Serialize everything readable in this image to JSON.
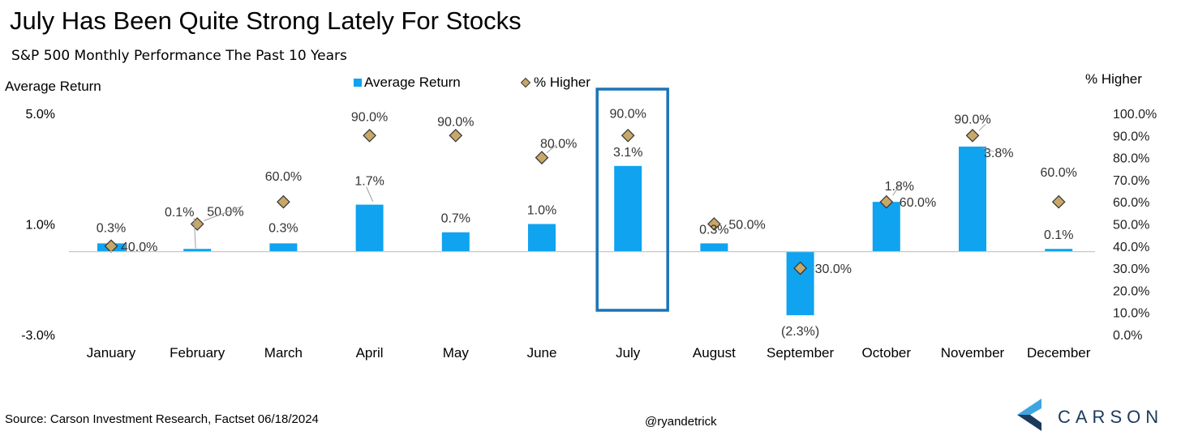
{
  "header": {
    "title": "July Has Been Quite Strong Lately For Stocks",
    "subtitle": "S&P 500 Monthly Performance The Past 10 Years"
  },
  "footer": {
    "source": "Source: Carson Investment Research, Factset 06/18/2024",
    "handle": "@ryandetrick",
    "logo_text": "CARSON"
  },
  "colors": {
    "bar": "#0fa3f0",
    "marker": "#c8a868",
    "marker_border": "#333333",
    "highlight_box": "#1a74b8",
    "axis_line": "#c8c8c8",
    "logo_dark": "#1b3a5c",
    "logo_light": "#3fa5e0"
  },
  "chart_data": {
    "type": "bar",
    "categories": [
      "January",
      "February",
      "March",
      "April",
      "May",
      "June",
      "July",
      "August",
      "September",
      "October",
      "November",
      "December"
    ],
    "series": [
      {
        "name": "Average Return",
        "type": "bar",
        "axis": "left",
        "values": [
          0.3,
          0.1,
          0.3,
          1.7,
          0.7,
          1.0,
          3.1,
          0.3,
          -2.3,
          1.8,
          3.8,
          0.1
        ],
        "labels": [
          "0.3%",
          "0.1%",
          "0.3%",
          "1.7%",
          "0.7%",
          "1.0%",
          "3.1%",
          "0.3%",
          "(2.3%)",
          "1.8%",
          "3.8%",
          "0.1%"
        ]
      },
      {
        "name": "% Higher",
        "type": "scatter",
        "marker": "diamond",
        "axis": "right",
        "values": [
          40,
          50,
          60,
          90,
          90,
          80,
          90,
          50,
          30,
          60,
          90,
          60
        ],
        "labels": [
          "40.0%",
          "50.0%",
          "60.0%",
          "90.0%",
          "90.0%",
          "80.0%",
          "90.0%",
          "50.0%",
          "30.0%",
          "60.0%",
          "90.0%",
          "60.0%"
        ]
      }
    ],
    "left_axis": {
      "label": "Average Return",
      "ylim": [
        -3.0,
        5.0
      ],
      "ticks": [
        5.0,
        1.0,
        -3.0
      ],
      "tick_labels": [
        "5.0%",
        "1.0%",
        "-3.0%"
      ]
    },
    "right_axis": {
      "label": "% Higher",
      "ylim": [
        0,
        100
      ],
      "ticks": [
        100,
        90,
        80,
        70,
        60,
        50,
        40,
        30,
        20,
        10,
        0
      ],
      "tick_labels": [
        "100.0%",
        "90.0%",
        "80.0%",
        "70.0%",
        "60.0%",
        "50.0%",
        "40.0%",
        "30.0%",
        "20.0%",
        "10.0%",
        "0.0%"
      ]
    },
    "legend": {
      "position": "top-center",
      "entries": [
        "Average Return",
        "% Higher"
      ]
    },
    "highlight_category": "July",
    "grid": false
  }
}
